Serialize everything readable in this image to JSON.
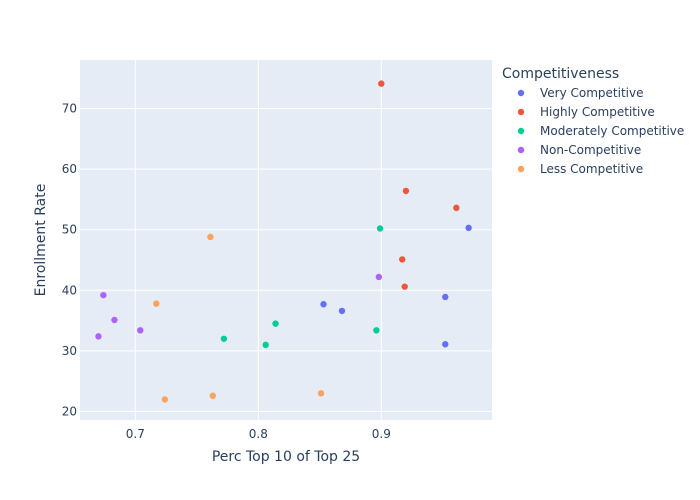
{
  "chart_data": {
    "type": "scatter",
    "xlabel": "Perc Top 10 of Top 25",
    "ylabel": "Enrollment Rate",
    "xlim": [
      0.655,
      0.99
    ],
    "ylim": [
      18.6,
      78.0
    ],
    "x_ticks": [
      0.7,
      0.8,
      0.9
    ],
    "x_tick_labels": [
      "0.7",
      "0.8",
      "0.9"
    ],
    "y_ticks": [
      20,
      30,
      40,
      50,
      60,
      70
    ],
    "y_tick_labels": [
      "20",
      "30",
      "40",
      "50",
      "60",
      "70"
    ],
    "grid": true,
    "legend_position": "right",
    "legend": {
      "title": "Competitiveness"
    },
    "series": [
      {
        "name": "Very Competitive",
        "color": "#636efa",
        "points": [
          {
            "x": 0.853,
            "y": 37.7
          },
          {
            "x": 0.868,
            "y": 36.6
          },
          {
            "x": 0.952,
            "y": 38.9
          },
          {
            "x": 0.952,
            "y": 31.1
          },
          {
            "x": 0.971,
            "y": 50.3
          }
        ]
      },
      {
        "name": "Highly Competitive",
        "color": "#ef553b",
        "points": [
          {
            "x": 0.9,
            "y": 74.1
          },
          {
            "x": 0.92,
            "y": 56.4
          },
          {
            "x": 0.961,
            "y": 53.6
          },
          {
            "x": 0.917,
            "y": 45.1
          },
          {
            "x": 0.919,
            "y": 40.6
          }
        ]
      },
      {
        "name": "Moderately Competitive",
        "color": "#00cc96",
        "points": [
          {
            "x": 0.899,
            "y": 50.2
          },
          {
            "x": 0.814,
            "y": 34.5
          },
          {
            "x": 0.896,
            "y": 33.4
          },
          {
            "x": 0.772,
            "y": 32.0
          },
          {
            "x": 0.806,
            "y": 31.0
          }
        ]
      },
      {
        "name": "Non-Competitive",
        "color": "#ab63fa",
        "points": [
          {
            "x": 0.674,
            "y": 39.2
          },
          {
            "x": 0.898,
            "y": 42.2
          },
          {
            "x": 0.683,
            "y": 35.1
          },
          {
            "x": 0.704,
            "y": 33.4
          },
          {
            "x": 0.67,
            "y": 32.4
          }
        ]
      },
      {
        "name": "Less Competitive",
        "color": "#ffa15a",
        "points": [
          {
            "x": 0.761,
            "y": 48.8
          },
          {
            "x": 0.717,
            "y": 37.8
          },
          {
            "x": 0.763,
            "y": 22.6
          },
          {
            "x": 0.724,
            "y": 22.0
          },
          {
            "x": 0.851,
            "y": 23.0
          }
        ]
      }
    ]
  },
  "style": {
    "plot_background": "#e5ecf6",
    "grid_color": "#ffffff",
    "text_color": "#2a3f5f"
  }
}
